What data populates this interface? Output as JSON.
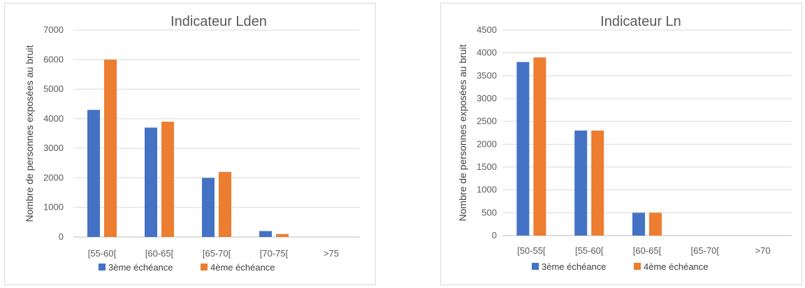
{
  "colors": {
    "series1": "#4472c4",
    "series2": "#ed7d31",
    "grid": "#d9d9d9",
    "text": "#595959"
  },
  "chart_data": [
    {
      "type": "bar",
      "title": "Indicateur  Lden",
      "xlabel": "",
      "ylabel": "Nombre de personnes exposées au bruit",
      "categories": [
        "[55-60[",
        "[60-65[",
        "[65-70[",
        "[70-75[",
        ">75"
      ],
      "series": [
        {
          "name": "3ème échéance",
          "values": [
            4300,
            3700,
            2000,
            200,
            0
          ]
        },
        {
          "name": "4ème  échéance",
          "values": [
            6000,
            3900,
            2200,
            100,
            0
          ]
        }
      ],
      "ylim": [
        0,
        7000
      ],
      "yticks": [
        0,
        1000,
        2000,
        3000,
        4000,
        5000,
        6000,
        7000
      ],
      "grid": true,
      "legend": "bottom"
    },
    {
      "type": "bar",
      "title": "Indicateur  Ln",
      "xlabel": "",
      "ylabel": "Nombre de personnes exposées au bruit",
      "categories": [
        "[50-55[",
        "[55-60[",
        "[60-65[",
        "[65-70[",
        ">70"
      ],
      "series": [
        {
          "name": "3ème échéance",
          "values": [
            3800,
            2300,
            500,
            0,
            0
          ]
        },
        {
          "name": "4ème  échéance",
          "values": [
            3900,
            2300,
            500,
            0,
            0
          ]
        }
      ],
      "ylim": [
        0,
        4500
      ],
      "yticks": [
        0,
        500,
        1000,
        1500,
        2000,
        2500,
        3000,
        3500,
        4000,
        4500
      ],
      "grid": true,
      "legend": "bottom"
    }
  ]
}
